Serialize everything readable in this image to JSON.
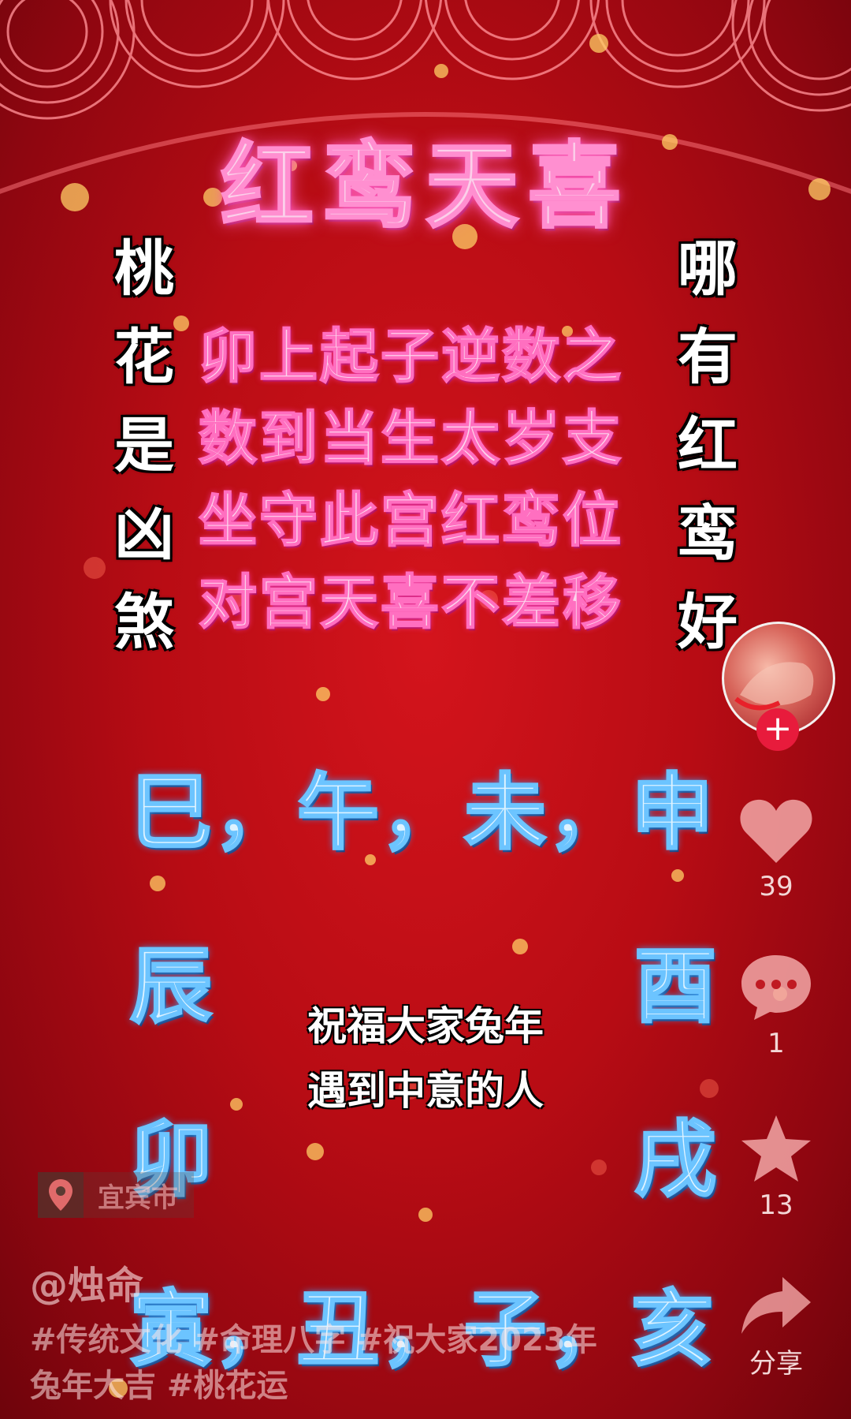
{
  "title": "红鸾天喜",
  "left_column": [
    "桃",
    "花",
    "是",
    "凶",
    "煞"
  ],
  "right_column": [
    "哪",
    "有",
    "红",
    "鸾",
    "好"
  ],
  "verse": [
    "卯上起子逆数之",
    "数到当生太岁支",
    "坐守此宫红鸾位",
    "对宫天喜不差移"
  ],
  "branches": {
    "top_row": "巳，午，未，申",
    "left_side": [
      "辰",
      "卯"
    ],
    "right_side": [
      "酉",
      "戌"
    ],
    "bottom_row": "寅，丑，子，亥"
  },
  "blessing": [
    "祝福大家兔年",
    "遇到中意的人"
  ],
  "actions": {
    "follow_label": "+",
    "like_count": "39",
    "comment_count": "1",
    "favorite_count": "13",
    "share_label": "分享"
  },
  "icons": {
    "location": "location-pin-icon",
    "like": "heart-icon",
    "comment": "comment-bubble-icon",
    "favorite": "star-icon",
    "share": "share-arrow-icon"
  },
  "location": "宜宾市",
  "author": "@烛命",
  "caption": [
    "#传统文化 #命理八字 #祝大家2023年",
    "兔年大吉 #桃花运"
  ],
  "colors": {
    "background": "#c40f17",
    "title_pink": "#fbd0ea",
    "branch_blue": "#dff3ff",
    "follow_red": "#e81b3c"
  }
}
